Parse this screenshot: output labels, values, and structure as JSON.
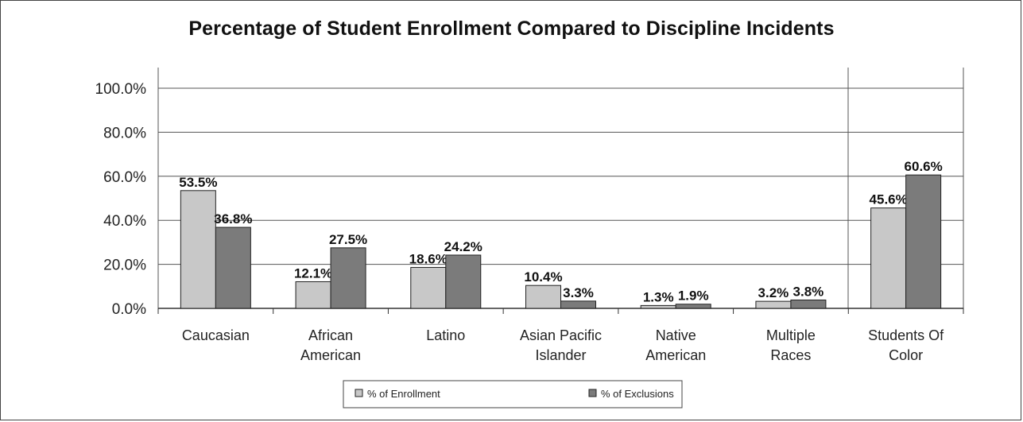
{
  "chart_data": {
    "type": "bar",
    "title": "Percentage of Student Enrollment Compared to Discipline Incidents",
    "categories": [
      [
        "Caucasian"
      ],
      [
        "African",
        "American"
      ],
      [
        "Latino"
      ],
      [
        "Asian Pacific",
        "Islander"
      ],
      [
        "Native",
        "American"
      ],
      [
        "Multiple",
        "Races"
      ],
      [
        "Students Of",
        "Color"
      ]
    ],
    "series": [
      {
        "name": "% of Enrollment",
        "color": "#c8c8c8",
        "values": [
          53.5,
          12.1,
          18.6,
          10.4,
          1.3,
          3.2,
          45.6
        ],
        "labels": [
          "53.5%",
          "12.1%",
          "18.6%",
          "10.4%",
          "1.3%",
          "3.2%",
          "45.6%"
        ]
      },
      {
        "name": "% of Exclusions",
        "color": "#7b7b7b",
        "values": [
          36.8,
          27.5,
          24.2,
          3.3,
          1.9,
          3.8,
          60.6
        ],
        "labels": [
          "36.8%",
          "27.5%",
          "24.2%",
          "3.3%",
          "1.9%",
          "3.8%",
          "60.6%"
        ]
      }
    ],
    "ylim": [
      0,
      100
    ],
    "yticks": [
      "0.0%",
      "20.0%",
      "40.0%",
      "60.0%",
      "80.0%",
      "100.0%"
    ],
    "grid": true,
    "legend": "bottom"
  }
}
